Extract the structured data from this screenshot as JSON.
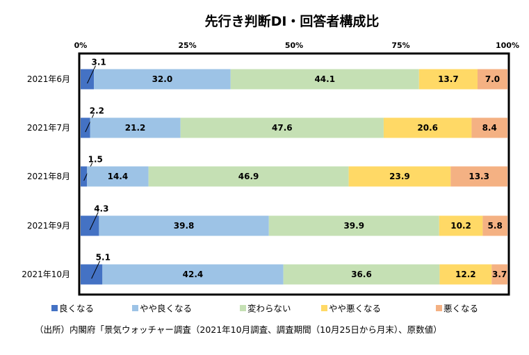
{
  "chart_data": {
    "type": "bar",
    "orientation": "horizontal",
    "stacked": "percent",
    "title": "先行き判断DI・回答者構成比",
    "categories": [
      "2021年6月",
      "2021年7月",
      "2021年8月",
      "2021年9月",
      "2021年10月"
    ],
    "x_ticks": [
      "0%",
      "25%",
      "50%",
      "75%",
      "100%"
    ],
    "xlim": [
      0,
      100
    ],
    "x_axis_position": "top",
    "grid": false,
    "legend_position": "bottom",
    "series": [
      {
        "name": "良くなる",
        "color": "#4472C4",
        "values": [
          3.1,
          2.2,
          1.5,
          4.3,
          5.1
        ],
        "labels": [
          "3.1",
          "2.2",
          "1.5",
          "4.3",
          "5.1"
        ]
      },
      {
        "name": "やや良くなる",
        "color": "#9DC3E6",
        "values": [
          32.0,
          21.2,
          14.4,
          39.8,
          42.4
        ],
        "labels": [
          "32.0",
          "21.2",
          "14.4",
          "39.8",
          "42.4"
        ]
      },
      {
        "name": "変わらない",
        "color": "#C5E0B4",
        "values": [
          44.1,
          47.6,
          46.9,
          39.9,
          36.6
        ],
        "labels": [
          "44.1",
          "47.6",
          "46.9",
          "39.9",
          "36.6"
        ]
      },
      {
        "name": "やや悪くなる",
        "color": "#FFD966",
        "values": [
          13.7,
          20.6,
          23.9,
          10.2,
          12.2
        ],
        "labels": [
          "13.7",
          "20.6",
          "23.9",
          "10.2",
          "12.2"
        ]
      },
      {
        "name": "悪くなる",
        "color": "#F4B183",
        "values": [
          7.0,
          8.4,
          13.3,
          5.8,
          3.7
        ],
        "labels": [
          "7.0",
          "8.4",
          "13.3",
          "5.8",
          "3.7"
        ]
      }
    ],
    "source": "（出所）内閣府「景気ウォッチャー調査（2021年10月調査、調査期間（10月25日から月末）、原数値）"
  }
}
